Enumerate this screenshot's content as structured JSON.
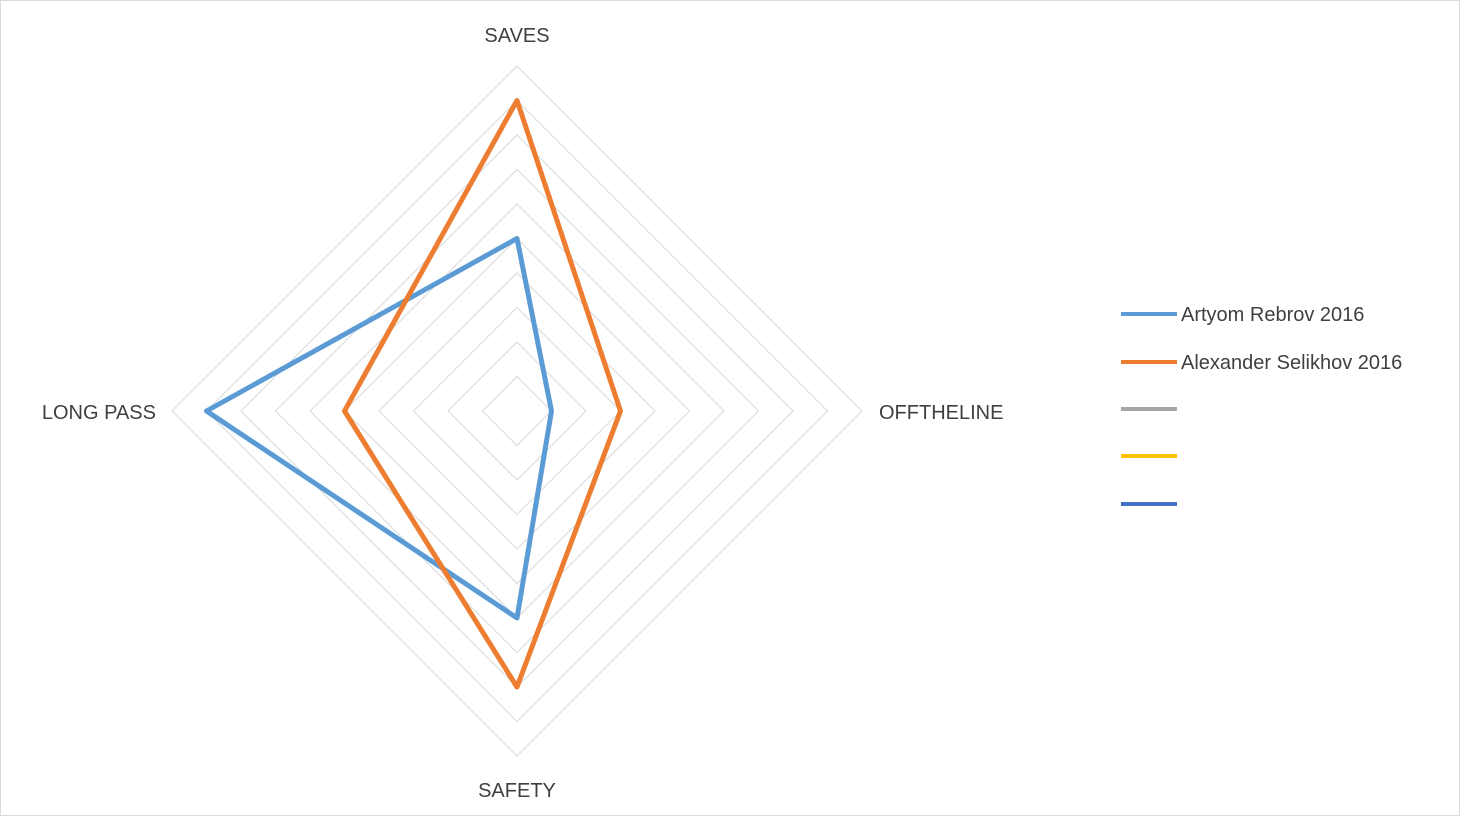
{
  "chart_data": {
    "type": "radar",
    "axes": [
      "SAVES",
      "OFFTHELINE",
      "SAFETY",
      "LONG PASS"
    ],
    "rmax": 10,
    "grid_levels": 10,
    "grid": true,
    "legend_position": "right",
    "series": [
      {
        "name": "Artyom Rebrov 2016",
        "color": "#5B9BD5",
        "values": [
          5,
          1,
          6,
          9
        ]
      },
      {
        "name": "Alexander Selikhov 2016",
        "color": "#ED7D31",
        "values": [
          9,
          3,
          8,
          5
        ]
      },
      {
        "name": "",
        "color": "#A5A5A5",
        "values": []
      },
      {
        "name": "",
        "color": "#FFC000",
        "values": []
      },
      {
        "name": "",
        "color": "#4472C4",
        "values": []
      }
    ]
  }
}
